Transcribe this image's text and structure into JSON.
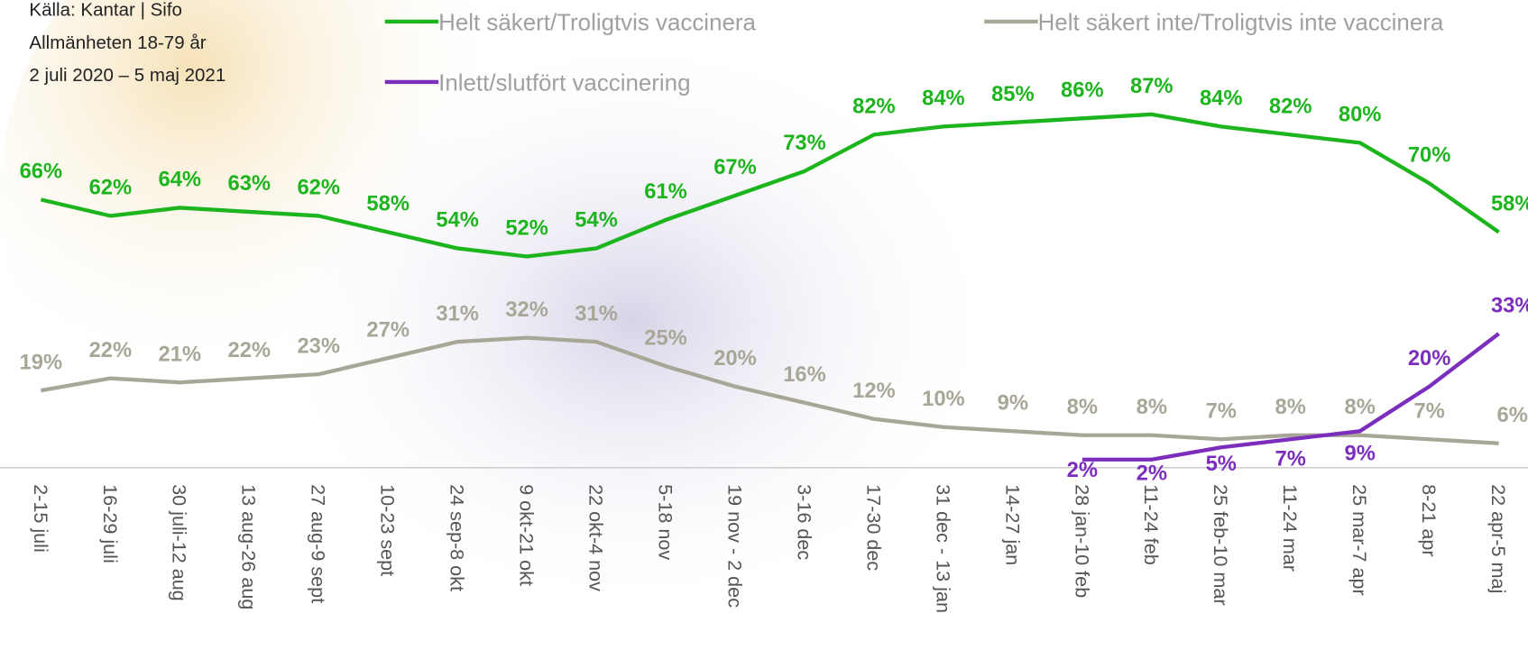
{
  "chart_data": {
    "type": "line",
    "source": [
      "Källa: Kantar | Sifo",
      "Allmänheten 18-79 år",
      "2 juli 2020 – 5 maj 2021"
    ],
    "categories": [
      "2-15 juli",
      "16-29 juli",
      "30 juli-12 aug",
      "13 aug-26 aug",
      "27 aug-9 sept",
      "10-23 sept",
      "24 sep-8 okt",
      "9 okt-21 okt",
      "22 okt-4 nov",
      "5-18 nov",
      "19 nov - 2 dec",
      "3-16 dec",
      "17-30 dec",
      "31 dec - 13 jan",
      "14-27 jan",
      "28 jan-10 feb",
      "11-24 feb",
      "25 feb-10 mar",
      "11-24 mar",
      "25 mar-7 apr",
      "8-21 apr",
      "22 apr-5 maj"
    ],
    "series": [
      {
        "name": "Helt säkert/Troligtvis vaccinera",
        "color": "#1db51d",
        "values": [
          66,
          62,
          64,
          63,
          62,
          58,
          54,
          52,
          54,
          61,
          67,
          73,
          82,
          84,
          85,
          86,
          87,
          84,
          82,
          80,
          70,
          58
        ],
        "value_labels": [
          "66%",
          "62%",
          "64%",
          "63%",
          "62%",
          "58%",
          "54%",
          "52%",
          "54%",
          "61%",
          "67%",
          "73%",
          "82%",
          "84%",
          "85%",
          "86%",
          "87%",
          "84%",
          "82%",
          "80%",
          "70%",
          "58%"
        ]
      },
      {
        "name": "Helt säkert inte/Troligtvis inte vaccinera",
        "color": "#a8a797",
        "values": [
          19,
          22,
          21,
          22,
          23,
          27,
          31,
          32,
          31,
          25,
          20,
          16,
          12,
          10,
          9,
          8,
          8,
          7,
          8,
          8,
          7,
          6
        ],
        "value_labels": [
          "19%",
          "22%",
          "21%",
          "22%",
          "23%",
          "27%",
          "31%",
          "32%",
          "31%",
          "25%",
          "20%",
          "16%",
          "12%",
          "10%",
          "9%",
          "8%",
          "8%",
          "7%",
          "8%",
          "8%",
          "7%",
          "6%"
        ]
      },
      {
        "name": "Inlett/slutfört vaccinering",
        "color": "#7b2dbd",
        "values": [
          null,
          null,
          null,
          null,
          null,
          null,
          null,
          null,
          null,
          null,
          null,
          null,
          null,
          null,
          null,
          2,
          2,
          5,
          7,
          9,
          20,
          33
        ],
        "value_labels": [
          null,
          null,
          null,
          null,
          null,
          null,
          null,
          null,
          null,
          null,
          null,
          null,
          null,
          null,
          null,
          "2%",
          "2%",
          "5%",
          "7%",
          "9%",
          "20%",
          "33%"
        ]
      }
    ]
  }
}
